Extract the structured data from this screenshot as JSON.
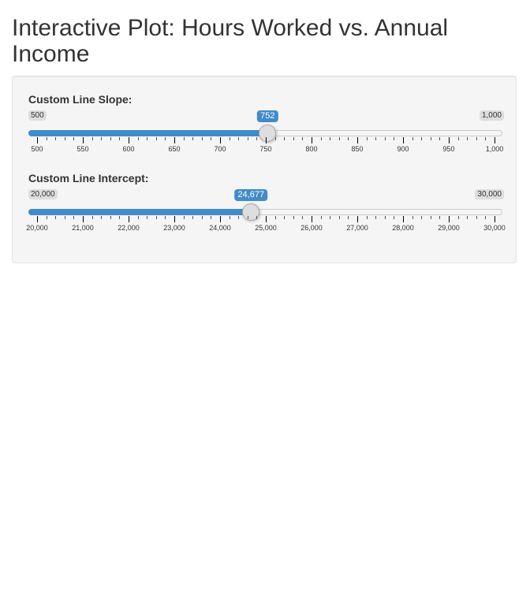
{
  "page": {
    "title": "Interactive Plot: Hours Worked vs. Annual Income"
  },
  "sliders": [
    {
      "label": "Custom Line Slope:",
      "min": 500,
      "max": 1000,
      "value": 752,
      "min_label": "500",
      "max_label": "1,000",
      "value_label": "752",
      "tick_labels": [
        "500",
        "550",
        "600",
        "650",
        "700",
        "750",
        "800",
        "850",
        "900",
        "950",
        "1,000"
      ]
    },
    {
      "label": "Custom Line Intercept:",
      "min": 20000,
      "max": 30000,
      "value": 24677,
      "min_label": "20,000",
      "max_label": "30,000",
      "value_label": "24,677",
      "tick_labels": [
        "20,000",
        "21,000",
        "22,000",
        "23,000",
        "24,000",
        "25,000",
        "26,000",
        "27,000",
        "28,000",
        "29,000",
        "30,000"
      ]
    }
  ],
  "colors": {
    "accent": "#428bca",
    "panel_background": "#f5f5f5"
  }
}
